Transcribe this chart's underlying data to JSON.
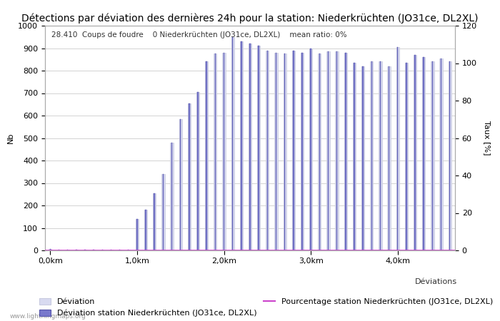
{
  "title": "Détections par déviation des dernières 24h pour la station: Niederkrüchten (JO31ce, DL2XL)",
  "subtitle": "28.410  Coups de foudre    0 Niederkrüchten (JO31ce, DL2XL)    mean ratio: 0%",
  "ylabel_left": "Nb",
  "ylabel_right": "Taux [%]",
  "xlabel": "Déviations",
  "watermark": "www.lightningmaps.org",
  "ylim_left": [
    0,
    1000
  ],
  "ylim_right": [
    0,
    120
  ],
  "yticks_left": [
    0,
    100,
    200,
    300,
    400,
    500,
    600,
    700,
    800,
    900,
    1000
  ],
  "yticks_right": [
    0,
    20,
    40,
    60,
    80,
    100,
    120
  ],
  "xtick_labels": [
    "0,0km",
    "1,0km",
    "2,0km",
    "3,0km",
    "4,0km"
  ],
  "xtick_positions": [
    0,
    10,
    20,
    30,
    40
  ],
  "bar_width": 0.35,
  "bar_color_light": "#d8daf0",
  "bar_color_dark": "#7878cc",
  "bar_edge_light": "#c8cae0",
  "bar_edge_dark": "#5555aa",
  "grid_color": "#cccccc",
  "background_color": "#ffffff",
  "title_fontsize": 10,
  "axis_fontsize": 8,
  "tick_fontsize": 8,
  "legend_fontsize": 8,
  "subtitle_fontsize": 7.5,
  "values_general": [
    5,
    2,
    2,
    2,
    2,
    2,
    2,
    2,
    2,
    2,
    140,
    180,
    255,
    340,
    480,
    585,
    655,
    705,
    840,
    875,
    880,
    950,
    930,
    920,
    910,
    890,
    880,
    875,
    890,
    880,
    900,
    875,
    885,
    885,
    880,
    835,
    820,
    840,
    840,
    820,
    905,
    835,
    870,
    860,
    840,
    855,
    840
  ],
  "values_station": [
    5,
    2,
    2,
    2,
    2,
    2,
    2,
    2,
    2,
    2,
    140,
    180,
    255,
    340,
    480,
    585,
    655,
    705,
    840,
    875,
    880,
    950,
    930,
    920,
    910,
    890,
    880,
    875,
    890,
    880,
    900,
    875,
    885,
    885,
    880,
    835,
    820,
    840,
    840,
    820,
    905,
    835,
    870,
    860,
    840,
    855,
    840
  ],
  "mean_ratio": 0,
  "n_bars": 47,
  "line_color": "#cc44cc"
}
